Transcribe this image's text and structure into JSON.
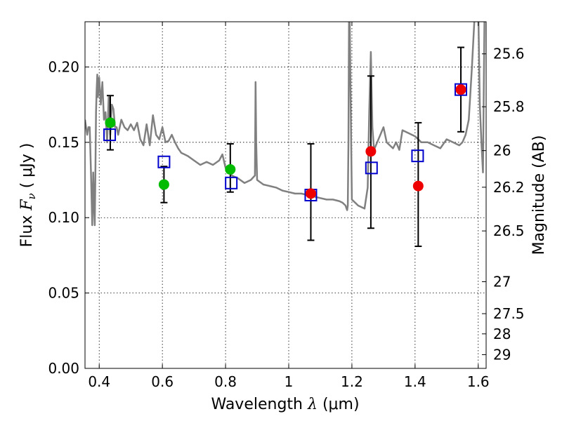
{
  "chart_data": {
    "type": "scatter",
    "xlabel_pre": "Wavelength",
    "xlabel_sym": "λ",
    "xlabel_unit": "(μm)",
    "ylabel_pre": "Flux",
    "ylabel_sym": "F",
    "ylabel_sub": "ν",
    "ylabel_unit": "( μJy )",
    "y2label": "Magnitude (AB)",
    "xlim": [
      0.355,
      1.625
    ],
    "ylim": [
      0.0,
      0.23
    ],
    "x_ticks": [
      0.4,
      0.6,
      0.8,
      1.0,
      1.2,
      1.4,
      1.6
    ],
    "x_tick_labels": [
      "0.4",
      "0.6",
      "0.8",
      "1",
      "1.2",
      "1.4",
      "1.6"
    ],
    "y_ticks": [
      0.0,
      0.05,
      0.1,
      0.15,
      0.2
    ],
    "y_tick_labels": [
      "0.00",
      "0.05",
      "0.10",
      "0.15",
      "0.20"
    ],
    "mag_ticks": [
      {
        "label": "25.6",
        "flux": 0.2087
      },
      {
        "label": "25.8",
        "flux": 0.1736
      },
      {
        "label": "26",
        "flux": 0.1445
      },
      {
        "label": "26.2",
        "flux": 0.1202
      },
      {
        "label": "26.5",
        "flux": 0.0912
      },
      {
        "label": "27",
        "flux": 0.0575
      },
      {
        "label": "27.5",
        "flux": 0.0363
      },
      {
        "label": "28",
        "flux": 0.0229
      },
      {
        "label": "29",
        "flux": 0.0091
      }
    ],
    "grid": true,
    "colors": {
      "model": "#808080",
      "optical": "#00bb00",
      "infrared": "#ee0000",
      "model_box": "#0000cc",
      "error": "#000000"
    },
    "model_spectrum": {
      "x": [
        0.355,
        0.362,
        0.366,
        0.37,
        0.374,
        0.378,
        0.381,
        0.384,
        0.386,
        0.388,
        0.39,
        0.392,
        0.394,
        0.396,
        0.4,
        0.405,
        0.41,
        0.415,
        0.42,
        0.425,
        0.43,
        0.435,
        0.44,
        0.445,
        0.45,
        0.455,
        0.46,
        0.47,
        0.48,
        0.49,
        0.5,
        0.51,
        0.52,
        0.53,
        0.54,
        0.55,
        0.56,
        0.57,
        0.58,
        0.59,
        0.6,
        0.61,
        0.62,
        0.63,
        0.64,
        0.65,
        0.66,
        0.67,
        0.68,
        0.7,
        0.72,
        0.74,
        0.76,
        0.78,
        0.79,
        0.8,
        0.82,
        0.84,
        0.86,
        0.88,
        0.893,
        0.895,
        0.897,
        0.9,
        0.92,
        0.94,
        0.96,
        0.98,
        1.0,
        1.02,
        1.04,
        1.06,
        1.08,
        1.1,
        1.12,
        1.14,
        1.16,
        1.17,
        1.175,
        1.18,
        1.183,
        1.185,
        1.187,
        1.189,
        1.191,
        1.193,
        1.2,
        1.22,
        1.24,
        1.25,
        1.255,
        1.26,
        1.265,
        1.27,
        1.28,
        1.29,
        1.3,
        1.31,
        1.32,
        1.33,
        1.34,
        1.35,
        1.36,
        1.38,
        1.4,
        1.42,
        1.44,
        1.46,
        1.48,
        1.5,
        1.52,
        1.54,
        1.55,
        1.56,
        1.57,
        1.58,
        1.59,
        1.6,
        1.605,
        1.61,
        1.615,
        1.62,
        1.625
      ],
      "y": [
        0.165,
        0.155,
        0.16,
        0.16,
        0.13,
        0.095,
        0.13,
        0.105,
        0.095,
        0.13,
        0.17,
        0.185,
        0.195,
        0.18,
        0.193,
        0.175,
        0.19,
        0.165,
        0.17,
        0.15,
        0.18,
        0.155,
        0.175,
        0.172,
        0.16,
        0.16,
        0.155,
        0.165,
        0.16,
        0.158,
        0.162,
        0.158,
        0.163,
        0.152,
        0.148,
        0.162,
        0.148,
        0.168,
        0.155,
        0.152,
        0.16,
        0.15,
        0.151,
        0.155,
        0.15,
        0.146,
        0.143,
        0.142,
        0.141,
        0.138,
        0.135,
        0.137,
        0.135,
        0.138,
        0.142,
        0.133,
        0.128,
        0.126,
        0.123,
        0.125,
        0.128,
        0.19,
        0.15,
        0.125,
        0.122,
        0.121,
        0.12,
        0.118,
        0.117,
        0.116,
        0.116,
        0.115,
        0.114,
        0.113,
        0.112,
        0.112,
        0.111,
        0.11,
        0.109,
        0.108,
        0.106,
        0.105,
        0.108,
        0.15,
        0.24,
        0.23,
        0.112,
        0.108,
        0.106,
        0.12,
        0.17,
        0.21,
        0.16,
        0.145,
        0.15,
        0.155,
        0.16,
        0.15,
        0.148,
        0.146,
        0.15,
        0.145,
        0.158,
        0.156,
        0.154,
        0.15,
        0.15,
        0.148,
        0.146,
        0.152,
        0.15,
        0.148,
        0.15,
        0.155,
        0.165,
        0.2,
        0.24,
        0.24,
        0.175,
        0.15,
        0.13,
        0.24,
        0.23
      ]
    },
    "optical_points": {
      "x": [
        0.435,
        0.605,
        0.815
      ],
      "y": [
        0.163,
        0.122,
        0.132
      ]
    },
    "infrared_points": {
      "x": [
        1.07,
        1.26,
        1.41,
        1.545
      ],
      "y": [
        0.116,
        0.144,
        0.121,
        0.185
      ]
    },
    "model_boxes": {
      "x": [
        0.433,
        0.605,
        0.818,
        1.07,
        1.262,
        1.408,
        1.545
      ],
      "y": [
        0.155,
        0.137,
        0.123,
        0.115,
        0.133,
        0.141,
        0.185
      ]
    },
    "error_bars": {
      "x": [
        0.435,
        0.605,
        0.815,
        1.07,
        1.26,
        1.41,
        1.545
      ],
      "low": [
        0.145,
        0.11,
        0.117,
        0.085,
        0.093,
        0.081,
        0.157
      ],
      "high": [
        0.181,
        0.134,
        0.149,
        0.149,
        0.194,
        0.163,
        0.213
      ]
    }
  }
}
